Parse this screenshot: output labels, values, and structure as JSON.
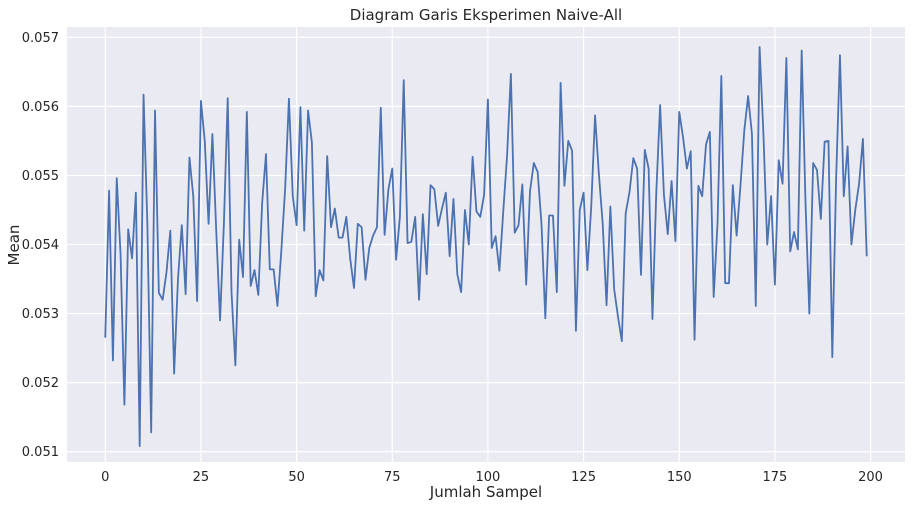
{
  "chart_data": {
    "type": "line",
    "title": "Diagram Garis Eksperimen Naive-All",
    "xlabel": "Jumlah Sampel",
    "ylabel": "Mean",
    "xlim": [
      -10,
      209
    ],
    "ylim": [
      0.05085,
      0.05715
    ],
    "xticks": [
      0,
      25,
      50,
      75,
      100,
      125,
      150,
      175,
      200
    ],
    "yticks": [
      0.051,
      0.052,
      0.053,
      0.054,
      0.055,
      0.056,
      0.057
    ],
    "xtick_labels": [
      "0",
      "25",
      "50",
      "75",
      "100",
      "125",
      "150",
      "175",
      "200"
    ],
    "ytick_labels": [
      "0.051",
      "0.052",
      "0.053",
      "0.054",
      "0.055",
      "0.056",
      "0.057"
    ],
    "grid": true,
    "background": "#eaeaf2",
    "line_color": "#4c72b0",
    "series": [
      {
        "values": [
          0.05265,
          0.05478,
          0.05232,
          0.05496,
          0.05385,
          0.05168,
          0.05422,
          0.0538,
          0.05475,
          0.05108,
          0.05617,
          0.0543,
          0.05128,
          0.05594,
          0.0533,
          0.0532,
          0.0536,
          0.0542,
          0.05213,
          0.0535,
          0.05428,
          0.05328,
          0.05526,
          0.0547,
          0.05318,
          0.05608,
          0.0555,
          0.0543,
          0.0556,
          0.0542,
          0.0529,
          0.0543,
          0.05612,
          0.0533,
          0.05225,
          0.05407,
          0.05353,
          0.05592,
          0.0534,
          0.05363,
          0.05327,
          0.0546,
          0.05531,
          0.05364,
          0.05364,
          0.05311,
          0.0539,
          0.0548,
          0.05611,
          0.0547,
          0.05428,
          0.05599,
          0.0542,
          0.05594,
          0.05548,
          0.05325,
          0.05363,
          0.05348,
          0.05528,
          0.05425,
          0.05452,
          0.0541,
          0.0541,
          0.0544,
          0.0538,
          0.05337,
          0.0543,
          0.05425,
          0.05349,
          0.05395,
          0.05413,
          0.05425,
          0.05598,
          0.05414,
          0.0548,
          0.0551,
          0.05378,
          0.0544,
          0.05638,
          0.05402,
          0.05404,
          0.0544,
          0.0532,
          0.05444,
          0.05357,
          0.05486,
          0.0548,
          0.05427,
          0.05452,
          0.05475,
          0.05383,
          0.05466,
          0.05357,
          0.05331,
          0.0545,
          0.054,
          0.05527,
          0.05448,
          0.0544,
          0.05472,
          0.0561,
          0.05395,
          0.05412,
          0.05362,
          0.05447,
          0.05528,
          0.05647,
          0.05417,
          0.05428,
          0.05487,
          0.05342,
          0.05477,
          0.05518,
          0.05505,
          0.0543,
          0.05293,
          0.05442,
          0.05442,
          0.05331,
          0.05634,
          0.05485,
          0.0555,
          0.05536,
          0.05275,
          0.0545,
          0.05475,
          0.05363,
          0.05455,
          0.05587,
          0.05502,
          0.0543,
          0.05312,
          0.05455,
          0.05335,
          0.05295,
          0.0526,
          0.05445,
          0.05476,
          0.05525,
          0.0551,
          0.05356,
          0.05537,
          0.0551,
          0.05292,
          0.05475,
          0.05602,
          0.05472,
          0.05415,
          0.05492,
          0.05405,
          0.05592,
          0.05555,
          0.0551,
          0.05535,
          0.05262,
          0.05485,
          0.0547,
          0.05545,
          0.05563,
          0.05324,
          0.0543,
          0.05644,
          0.05344,
          0.05344,
          0.05486,
          0.05413,
          0.05485,
          0.05565,
          0.05615,
          0.0556,
          0.05311,
          0.05686,
          0.0556,
          0.054,
          0.0547,
          0.05342,
          0.05522,
          0.05488,
          0.0567,
          0.0539,
          0.05418,
          0.05393,
          0.05681,
          0.0546,
          0.053,
          0.05518,
          0.05508,
          0.05437,
          0.05549,
          0.0555,
          0.05237,
          0.05495,
          0.05674,
          0.0547,
          0.05542,
          0.054,
          0.0545,
          0.05488,
          0.05553,
          0.05383
        ]
      }
    ]
  }
}
